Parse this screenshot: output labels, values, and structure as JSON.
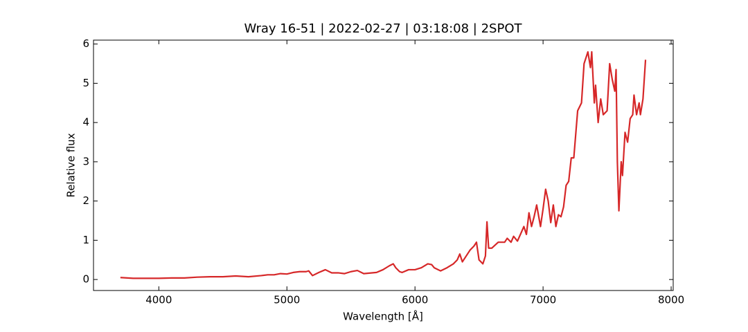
{
  "chart_data": {
    "type": "line",
    "title": "Wray 16-51 | 2022-02-27 | 03:18:08 | 2SPOT",
    "x_label": "Wavelength [Å]",
    "y_label": "Relative flux",
    "x": [
      3700,
      3800,
      3900,
      4000,
      4100,
      4200,
      4300,
      4400,
      4500,
      4600,
      4700,
      4800,
      4850,
      4900,
      4950,
      5000,
      5050,
      5100,
      5150,
      5170,
      5200,
      5250,
      5300,
      5350,
      5400,
      5450,
      5500,
      5550,
      5600,
      5700,
      5750,
      5800,
      5830,
      5850,
      5880,
      5900,
      5950,
      6000,
      6050,
      6100,
      6130,
      6150,
      6200,
      6250,
      6300,
      6330,
      6350,
      6370,
      6400,
      6430,
      6460,
      6480,
      6500,
      6530,
      6550,
      6562,
      6575,
      6600,
      6650,
      6700,
      6720,
      6750,
      6770,
      6800,
      6830,
      6850,
      6870,
      6890,
      6910,
      6930,
      6950,
      6980,
      7000,
      7020,
      7040,
      7060,
      7080,
      7100,
      7120,
      7140,
      7160,
      7180,
      7200,
      7220,
      7240,
      7270,
      7300,
      7320,
      7350,
      7370,
      7380,
      7400,
      7410,
      7430,
      7450,
      7470,
      7500,
      7520,
      7540,
      7560,
      7570,
      7580,
      7592,
      7610,
      7620,
      7640,
      7660,
      7680,
      7700,
      7710,
      7730,
      7750,
      7760,
      7780,
      7800
    ],
    "series": [
      {
        "name": "Wray 16-51",
        "color": "#d62728",
        "values": [
          0.05,
          0.03,
          0.03,
          0.03,
          0.04,
          0.04,
          0.06,
          0.07,
          0.07,
          0.09,
          0.07,
          0.1,
          0.12,
          0.12,
          0.15,
          0.14,
          0.18,
          0.2,
          0.2,
          0.22,
          0.1,
          0.18,
          0.25,
          0.17,
          0.17,
          0.15,
          0.2,
          0.23,
          0.15,
          0.18,
          0.25,
          0.35,
          0.4,
          0.3,
          0.2,
          0.18,
          0.25,
          0.25,
          0.3,
          0.4,
          0.38,
          0.3,
          0.22,
          0.3,
          0.4,
          0.5,
          0.65,
          0.45,
          0.6,
          0.75,
          0.85,
          0.95,
          0.5,
          0.4,
          0.6,
          1.47,
          0.8,
          0.8,
          0.95,
          0.95,
          1.05,
          0.95,
          1.1,
          0.98,
          1.2,
          1.35,
          1.15,
          1.7,
          1.35,
          1.6,
          1.9,
          1.35,
          1.8,
          2.3,
          2.0,
          1.45,
          1.9,
          1.35,
          1.65,
          1.6,
          1.85,
          2.4,
          2.5,
          3.1,
          3.1,
          4.3,
          4.5,
          5.5,
          5.8,
          5.4,
          5.8,
          4.5,
          4.95,
          4.0,
          4.6,
          4.2,
          4.3,
          5.5,
          5.1,
          4.8,
          5.35,
          3.0,
          1.75,
          3.0,
          2.65,
          3.75,
          3.5,
          4.1,
          4.2,
          4.7,
          4.2,
          4.5,
          4.2,
          4.6,
          5.6
        ]
      }
    ],
    "xlim": [
      3490,
      8016
    ],
    "ylim": [
      -0.28,
      6.1
    ],
    "xticks": [
      4000,
      5000,
      6000,
      7000,
      8000
    ],
    "yticks": [
      0,
      1,
      2,
      3,
      4,
      5,
      6
    ],
    "grid": false
  }
}
